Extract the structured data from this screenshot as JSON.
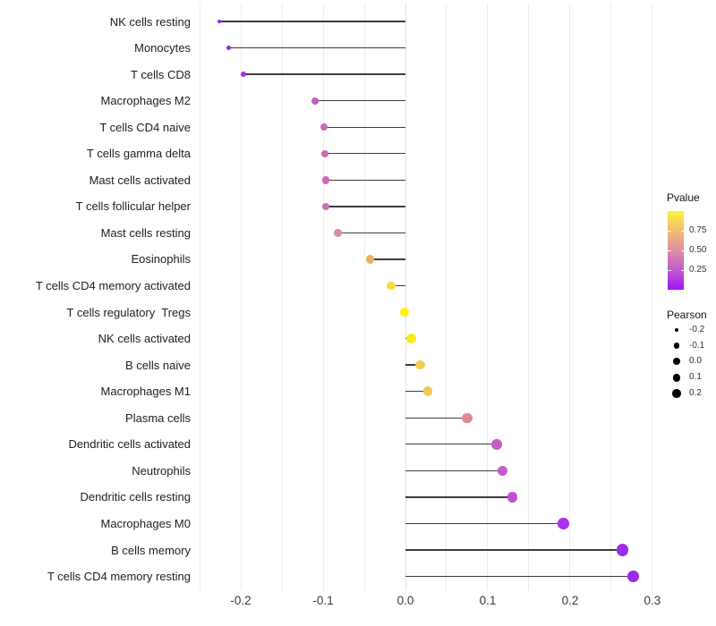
{
  "colors": {
    "background": "#ffffff",
    "grid": "#ececec",
    "zero_line": "#e2e2e2",
    "stem": "#3d3d3d",
    "axis_text": "#3a3a3a",
    "label_text": "#212121"
  },
  "chart_data": {
    "type": "scatter",
    "variant": "lollipop",
    "orientation": "horizontal",
    "title": "",
    "xlabel": "",
    "ylabel": "",
    "grid": "vertical-only",
    "xlim": [
      -0.2555,
      0.3055
    ],
    "x_tick_values": [
      -0.2,
      -0.1,
      0.0,
      0.1,
      0.2,
      0.3
    ],
    "x_tick_labels": [
      "-0.2",
      "-0.1",
      "0.0",
      "0.1",
      "0.2",
      "0.3"
    ],
    "minor_grid_step": 0.05,
    "categories": [
      "NK cells resting",
      "Monocytes",
      "T cells CD8",
      "Macrophages M2",
      "T cells CD4 naive",
      "T cells gamma delta",
      "Mast cells activated",
      "T cells follicular helper",
      "Mast cells resting",
      "Eosinophils",
      "T cells CD4 memory activated",
      "T cells regulatory  Tregs",
      "NK cells activated",
      "B cells naive",
      "Macrophages M1",
      "Plasma cells",
      "Dendritic cells activated",
      "Neutrophils",
      "Dendritic cells resting",
      "Macrophages M0",
      "B cells memory",
      "T cells CD4 memory resting"
    ],
    "points": [
      {
        "label": "NK cells resting",
        "pearson": -0.226,
        "pvalue_approx": 0.07,
        "color": "#9726E3"
      },
      {
        "label": "Monocytes",
        "pearson": -0.215,
        "pvalue_approx": 0.08,
        "color": "#9829E2"
      },
      {
        "label": "T cells CD8",
        "pearson": -0.197,
        "pvalue_approx": 0.12,
        "color": "#A133DE"
      },
      {
        "label": "Macrophages M2",
        "pearson": -0.11,
        "pvalue_approx": 0.33,
        "color": "#C45DBE"
      },
      {
        "label": "T cells CD4 naive",
        "pearson": -0.099,
        "pvalue_approx": 0.38,
        "color": "#CC6BB5"
      },
      {
        "label": "T cells gamma delta",
        "pearson": -0.098,
        "pvalue_approx": 0.38,
        "color": "#CC6BB5"
      },
      {
        "label": "Mast cells activated",
        "pearson": -0.097,
        "pvalue_approx": 0.38,
        "color": "#CC6CB6"
      },
      {
        "label": "T cells follicular helper",
        "pearson": -0.097,
        "pvalue_approx": 0.39,
        "color": "#CD6EB4"
      },
      {
        "label": "Mast cells resting",
        "pearson": -0.082,
        "pvalue_approx": 0.52,
        "color": "#D98C9F"
      },
      {
        "label": "Eosinophils",
        "pearson": -0.043,
        "pvalue_approx": 0.7,
        "color": "#EBB163"
      },
      {
        "label": "T cells CD4 memory activated",
        "pearson": -0.017,
        "pvalue_approx": 0.87,
        "color": "#F5DD41"
      },
      {
        "label": "T cells regulatory  Tregs",
        "pearson": -0.001,
        "pvalue_approx": 0.99,
        "color": "#FDF501"
      },
      {
        "label": "NK cells activated",
        "pearson": 0.007,
        "pvalue_approx": 0.93,
        "color": "#F9EC1C"
      },
      {
        "label": "B cells naive",
        "pearson": 0.018,
        "pvalue_approx": 0.82,
        "color": "#F2CF4D"
      },
      {
        "label": "Macrophages M1",
        "pearson": 0.027,
        "pvalue_approx": 0.79,
        "color": "#F0C854"
      },
      {
        "label": "Plasma cells",
        "pearson": 0.075,
        "pvalue_approx": 0.55,
        "color": "#E08B90"
      },
      {
        "label": "Dendritic cells activated",
        "pearson": 0.111,
        "pvalue_approx": 0.34,
        "color": "#C75FC2"
      },
      {
        "label": "Neutrophils",
        "pearson": 0.118,
        "pvalue_approx": 0.32,
        "color": "#C95BCB"
      },
      {
        "label": "Dendritic cells resting",
        "pearson": 0.13,
        "pvalue_approx": 0.28,
        "color": "#C04ED4"
      },
      {
        "label": "Macrophages M0",
        "pearson": 0.192,
        "pvalue_approx": 0.15,
        "color": "#A932E8"
      },
      {
        "label": "B cells memory",
        "pearson": 0.264,
        "pvalue_approx": 0.08,
        "color": "#9D2BEB"
      },
      {
        "label": "T cells CD4 memory resting",
        "pearson": 0.277,
        "pvalue_approx": 0.07,
        "color": "#9B28EC"
      }
    ],
    "legend": {
      "pvalue": {
        "title": "Pvalue",
        "range": [
          0,
          1
        ],
        "tick_values": [
          0.75,
          0.5,
          0.25
        ],
        "tick_labels": [
          "0.75",
          "0.50",
          "0.25"
        ],
        "gradient_stops": [
          {
            "pos": 0.0,
            "color": "#A213F7"
          },
          {
            "pos": 0.25,
            "color": "#C25BCE"
          },
          {
            "pos": 0.5,
            "color": "#DE8EA3"
          },
          {
            "pos": 0.75,
            "color": "#F2BC71"
          },
          {
            "pos": 1.0,
            "color": "#FCF23A"
          }
        ]
      },
      "pearson": {
        "title": "Pearson",
        "size_values": [
          -0.2,
          -0.1,
          0.0,
          0.1,
          0.2
        ],
        "size_labels": [
          "-0.2",
          "-0.1",
          "0.0",
          "0.1",
          "0.2"
        ]
      }
    }
  }
}
